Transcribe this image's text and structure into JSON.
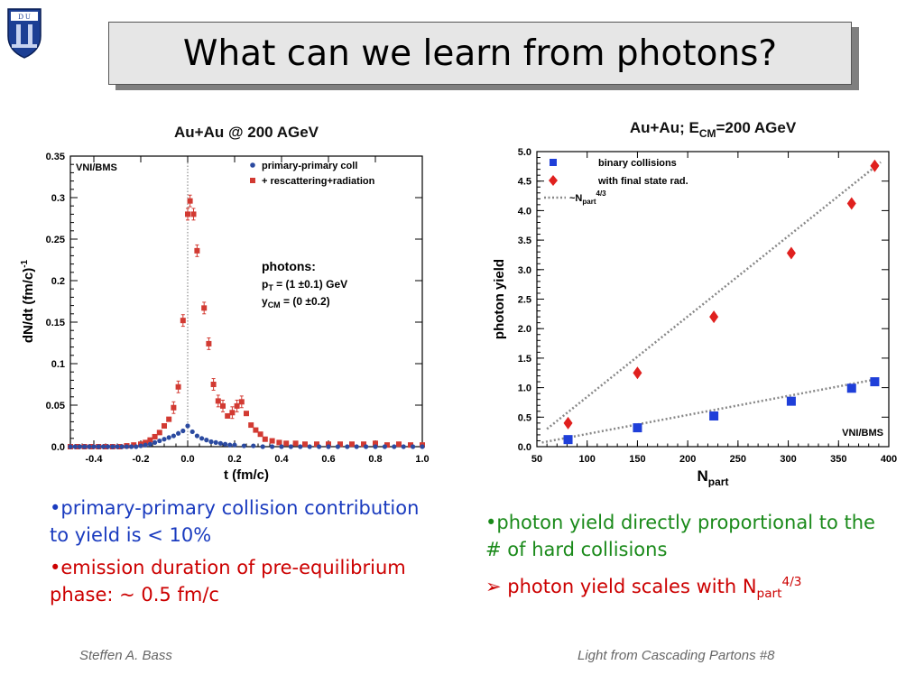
{
  "slide": {
    "title": "What can we learn from photons?",
    "footer_left": "Steffen A. Bass",
    "footer_right": "Light from Cascading Partons  #8",
    "colors": {
      "blue_text": "#1a3bbf",
      "red_text": "#cc0000",
      "green_text": "#1a8a1a"
    }
  },
  "logo": {
    "icon": "duke-university-shield-logo",
    "motto": "Eruditio et Religio"
  },
  "left_bullets": [
    {
      "bullet": "•",
      "text": "primary-primary collision contribution to yield is < 10%"
    },
    {
      "bullet": "•",
      "text": "emission duration of pre-equilibrium phase: ~ 0.5 fm/c"
    }
  ],
  "right_bullets": {
    "item1": {
      "bullet": "•",
      "text": "photon yield directly proportional to the # of hard collisions"
    },
    "item2": {
      "bullet": "➢",
      "text": " photon yield scales with N",
      "sub": "part",
      "sup": "4/3"
    }
  },
  "chart_data": [
    {
      "type": "scatter",
      "title": "Au+Au @ 200 AGeV",
      "xlabel": "t (fm/c)",
      "ylabel": "dN/dt (fm/c)",
      "ylabel_sup": "-1",
      "xlim": [
        -0.5,
        1.0
      ],
      "ylim": [
        0,
        0.35
      ],
      "xticks": [
        "-0.4",
        "-0.2",
        "0.0",
        "0.2",
        "0.4",
        "0.6",
        "0.8",
        "1.0"
      ],
      "yticks": [
        "0.0",
        "0.05",
        "0.1",
        "0.15",
        "0.2",
        "0.25",
        "0.3",
        "0.35"
      ],
      "corner_label": "VNI/BMS",
      "reference_line_x": 0.0,
      "annotation": {
        "line1": "photons:",
        "pt_sym": "p",
        "pt_sub": "T",
        "pt_val": " = (1 ±0.1) GeV",
        "y_sym": "y",
        "y_sub": "CM",
        "y_val": " = (0 ±0.2)"
      },
      "legend_position": "top-right",
      "series": [
        {
          "name": "primary-primary coll",
          "marker": "circle",
          "color": "#2b4aa0",
          "x": [
            -0.5,
            -0.48,
            -0.46,
            -0.44,
            -0.42,
            -0.4,
            -0.38,
            -0.36,
            -0.34,
            -0.32,
            -0.3,
            -0.28,
            -0.26,
            -0.24,
            -0.22,
            -0.2,
            -0.18,
            -0.16,
            -0.14,
            -0.12,
            -0.1,
            -0.08,
            -0.06,
            -0.04,
            -0.02,
            0.0,
            0.02,
            0.04,
            0.06,
            0.08,
            0.1,
            0.12,
            0.14,
            0.16,
            0.18,
            0.2,
            0.24,
            0.28,
            0.32,
            0.36,
            0.4,
            0.44,
            0.48,
            0.52,
            0.56,
            0.6,
            0.64,
            0.68,
            0.72,
            0.76,
            0.8,
            0.84,
            0.88,
            0.92,
            0.96,
            1.0
          ],
          "y": [
            0,
            0,
            0,
            0,
            0,
            0,
            0,
            0,
            0,
            0,
            0,
            0,
            0,
            0,
            0,
            0.001,
            0.002,
            0.003,
            0.005,
            0.007,
            0.009,
            0.011,
            0.013,
            0.016,
            0.019,
            0.025,
            0.018,
            0.013,
            0.01,
            0.008,
            0.006,
            0.005,
            0.004,
            0.003,
            0.002,
            0.002,
            0.001,
            0.001,
            0,
            0,
            0,
            0,
            0,
            0,
            0,
            0,
            0,
            0,
            0,
            0,
            0,
            0,
            0,
            0,
            0,
            0
          ]
        },
        {
          "name": "+ rescattering+radiation",
          "marker": "square",
          "color": "#d23a32",
          "x": [
            -0.5,
            -0.47,
            -0.44,
            -0.41,
            -0.38,
            -0.35,
            -0.32,
            -0.29,
            -0.26,
            -0.23,
            -0.2,
            -0.18,
            -0.16,
            -0.14,
            -0.12,
            -0.1,
            -0.08,
            -0.06,
            -0.04,
            -0.02,
            0.0,
            0.01,
            0.025,
            0.04,
            0.07,
            0.09,
            0.11,
            0.13,
            0.15,
            0.17,
            0.19,
            0.21,
            0.23,
            0.25,
            0.27,
            0.29,
            0.31,
            0.33,
            0.36,
            0.39,
            0.42,
            0.46,
            0.5,
            0.55,
            0.6,
            0.65,
            0.7,
            0.75,
            0.8,
            0.85,
            0.9,
            0.95,
            1.0
          ],
          "y": [
            0,
            0,
            0,
            0,
            0,
            0,
            0,
            0,
            0.001,
            0.002,
            0.003,
            0.005,
            0.008,
            0.012,
            0.017,
            0.025,
            0.033,
            0.047,
            0.072,
            0.152,
            0.28,
            0.296,
            0.28,
            0.236,
            0.167,
            0.124,
            0.075,
            0.055,
            0.049,
            0.037,
            0.041,
            0.049,
            0.054,
            0.04,
            0.026,
            0.02,
            0.015,
            0.009,
            0.007,
            0.005,
            0.004,
            0.004,
            0.003,
            0.003,
            0.003,
            0.003,
            0.003,
            0.003,
            0.004,
            0.002,
            0.003,
            0.002,
            0.002
          ]
        }
      ]
    },
    {
      "type": "scatter",
      "title_main": "Au+Au; E",
      "title_sub": "CM",
      "title_rest": "=200 AGeV",
      "xlabel_main": "N",
      "xlabel_sub": "part",
      "ylabel": "photon yield",
      "xlim": [
        50,
        400
      ],
      "ylim": [
        0,
        5.0
      ],
      "xticks": [
        "50",
        "100",
        "150",
        "200",
        "250",
        "300",
        "350",
        "400"
      ],
      "yticks": [
        "0.0",
        "0.5",
        "1.0",
        "1.5",
        "2.0",
        "2.5",
        "3.0",
        "3.5",
        "4.0",
        "4.5",
        "5.0"
      ],
      "corner_label": "VNI/BMS",
      "legend_position": "top-left",
      "series": [
        {
          "name": "binary collisions",
          "marker": "square",
          "color": "#1f3fd9",
          "x": [
            81,
            150,
            226,
            303,
            363,
            386
          ],
          "y": [
            0.12,
            0.32,
            0.52,
            0.77,
            0.99,
            1.1
          ]
        },
        {
          "name": "with final state rad.",
          "marker": "diamond",
          "color": "#e0201e",
          "x": [
            81,
            150,
            226,
            303,
            363,
            386
          ],
          "y": [
            0.4,
            1.25,
            2.2,
            3.28,
            4.12,
            4.76
          ]
        }
      ],
      "fit_legend": {
        "prefix": "~N",
        "sub": "part",
        "sup": "4/3"
      },
      "fits": [
        {
          "x": [
            55,
            390
          ],
          "y": [
            0.07,
            1.15
          ]
        },
        {
          "x": [
            60,
            392
          ],
          "y": [
            0.3,
            4.82
          ]
        }
      ]
    }
  ]
}
